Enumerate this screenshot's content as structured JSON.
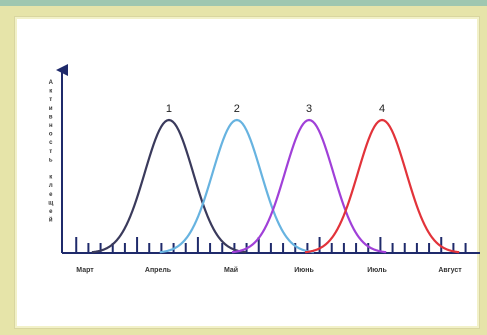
{
  "chart_data": {
    "type": "line",
    "title": "",
    "xlabel": "",
    "ylabel": "Активность клещей",
    "x_categories": [
      "Март",
      "Апрель",
      "Май",
      "Июнь",
      "Июль",
      "Август"
    ],
    "xlim": [
      0,
      5
    ],
    "ylim": [
      0,
      1
    ],
    "grid": false,
    "series": [
      {
        "peak_label": "1",
        "color": "#3a3a5c",
        "center": 1.15,
        "spread": 0.33,
        "peak": 1
      },
      {
        "peak_label": "2",
        "color": "#67b3e0",
        "center": 2.08,
        "spread": 0.33,
        "peak": 1
      },
      {
        "peak_label": "3",
        "color": "#a040d8",
        "center": 3.07,
        "spread": 0.33,
        "peak": 1
      },
      {
        "peak_label": "4",
        "color": "#e2333a",
        "center": 4.07,
        "spread": 0.33,
        "peak": 1
      }
    ]
  }
}
